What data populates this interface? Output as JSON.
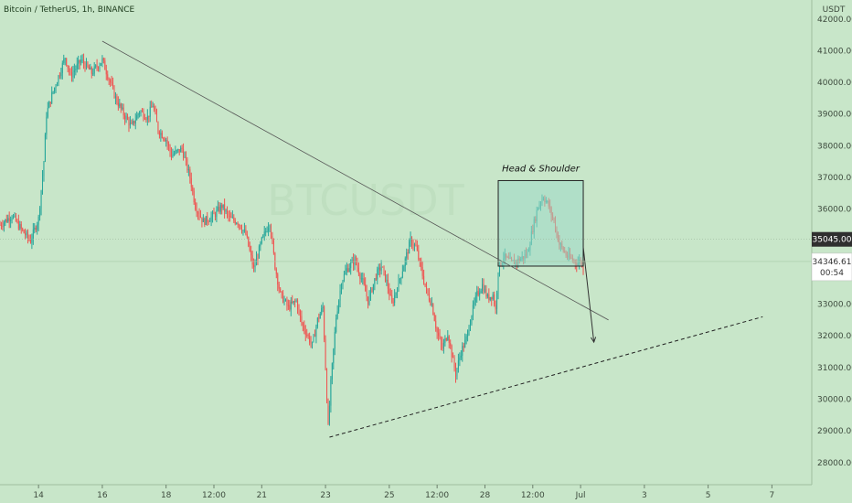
{
  "chart_data": {
    "type": "candlestick",
    "title": "Bitcoin / TetherUS, 1h, BINANCE",
    "currency": "USDT",
    "y_ticks": [
      28000,
      29000,
      30000,
      31000,
      32000,
      33000,
      34000,
      35000,
      36000,
      37000,
      38000,
      39000,
      40000,
      41000,
      42000
    ],
    "y_tick_labels": [
      "28000.00",
      "29000.00",
      "30000.00",
      "31000.00",
      "32000.00",
      "33000.00",
      "34000.00",
      "35000.00",
      "36000.00",
      "37000.00",
      "38000.00",
      "39000.00",
      "40000.00",
      "41000.00",
      "42000.00"
    ],
    "ylim": [
      27300,
      42600
    ],
    "x_ticks": [
      {
        "label": "14",
        "t": 0
      },
      {
        "label": "16",
        "t": 48
      },
      {
        "label": "18",
        "t": 96
      },
      {
        "label": "12:00",
        "t": 132
      },
      {
        "label": "21",
        "t": 168
      },
      {
        "label": "23",
        "t": 216
      },
      {
        "label": "25",
        "t": 264
      },
      {
        "label": "12:00",
        "t": 300
      },
      {
        "label": "28",
        "t": 336
      },
      {
        "label": "12:00",
        "t": 372
      },
      {
        "label": "Jul",
        "t": 408
      },
      {
        "label": "3",
        "t": 456
      },
      {
        "label": "5",
        "t": 504
      },
      {
        "label": "7",
        "t": 552
      }
    ],
    "xlim": [
      -29,
      582
    ],
    "price_path": [
      [
        -29,
        35500
      ],
      [
        -20,
        35800
      ],
      [
        -12,
        35300
      ],
      [
        -6,
        35000
      ],
      [
        0,
        35700
      ],
      [
        4,
        37500
      ],
      [
        6,
        39000
      ],
      [
        10,
        39600
      ],
      [
        16,
        40300
      ],
      [
        20,
        40800
      ],
      [
        24,
        40200
      ],
      [
        32,
        40700
      ],
      [
        40,
        40300
      ],
      [
        48,
        40700
      ],
      [
        54,
        40000
      ],
      [
        58,
        39500
      ],
      [
        64,
        39000
      ],
      [
        70,
        38600
      ],
      [
        76,
        39100
      ],
      [
        82,
        38900
      ],
      [
        86,
        39300
      ],
      [
        90,
        38500
      ],
      [
        96,
        38200
      ],
      [
        100,
        37700
      ],
      [
        108,
        37900
      ],
      [
        114,
        37000
      ],
      [
        118,
        36100
      ],
      [
        124,
        35600
      ],
      [
        132,
        35800
      ],
      [
        138,
        36100
      ],
      [
        144,
        35700
      ],
      [
        150,
        35600
      ],
      [
        156,
        35200
      ],
      [
        162,
        34100
      ],
      [
        168,
        35000
      ],
      [
        174,
        35600
      ],
      [
        178,
        34200
      ],
      [
        182,
        33300
      ],
      [
        188,
        32900
      ],
      [
        194,
        33100
      ],
      [
        198,
        32400
      ],
      [
        206,
        31700
      ],
      [
        210,
        32500
      ],
      [
        214,
        32900
      ],
      [
        218,
        29100
      ],
      [
        220,
        30500
      ],
      [
        224,
        32600
      ],
      [
        228,
        33700
      ],
      [
        232,
        34100
      ],
      [
        238,
        34400
      ],
      [
        244,
        33700
      ],
      [
        248,
        33100
      ],
      [
        254,
        33900
      ],
      [
        258,
        34200
      ],
      [
        262,
        33700
      ],
      [
        266,
        33000
      ],
      [
        272,
        33800
      ],
      [
        276,
        34400
      ],
      [
        280,
        35000
      ],
      [
        284,
        34800
      ],
      [
        288,
        34100
      ],
      [
        292,
        33400
      ],
      [
        296,
        33000
      ],
      [
        300,
        32100
      ],
      [
        304,
        31600
      ],
      [
        308,
        32100
      ],
      [
        312,
        31200
      ],
      [
        314,
        30800
      ],
      [
        318,
        31500
      ],
      [
        322,
        31900
      ],
      [
        326,
        32700
      ],
      [
        330,
        33300
      ],
      [
        334,
        33600
      ],
      [
        338,
        33200
      ],
      [
        342,
        33300
      ],
      [
        344,
        32800
      ],
      [
        346,
        34100
      ],
      [
        350,
        34500
      ],
      [
        356,
        34300
      ],
      [
        362,
        34400
      ],
      [
        368,
        34600
      ],
      [
        372,
        35400
      ],
      [
        376,
        36100
      ],
      [
        380,
        36400
      ],
      [
        384,
        36100
      ],
      [
        388,
        35600
      ],
      [
        392,
        34900
      ],
      [
        398,
        34500
      ],
      [
        402,
        34400
      ],
      [
        406,
        34300
      ],
      [
        408,
        34400
      ],
      [
        410,
        34100
      ]
    ],
    "annotations": {
      "box_label": "Head & Shoulder",
      "box": {
        "t0": 346,
        "t1": 410,
        "p0": 34200,
        "p1": 36900
      },
      "downtrend_line": {
        "t0": 48,
        "p0": 41300,
        "t1": 429,
        "p1": 32500
      },
      "uptrend_line": {
        "t0": 219,
        "p0": 28800,
        "t1": 545,
        "p1": 32600
      },
      "arrow": {
        "t0": 410,
        "p0": 34800,
        "t1": 418,
        "p1": 31800
      }
    },
    "price_labels": [
      {
        "text": "35045.00",
        "value": 35045,
        "kind": "horizontal-line-label"
      },
      {
        "text": "34346.61",
        "value": 34346.61,
        "kind": "last-price"
      },
      {
        "text": "00:54",
        "kind": "countdown"
      }
    ],
    "grid": false,
    "colors": {
      "background": "#c8e6c9",
      "up": "#26a69a",
      "down": "#ef5350",
      "box_fill": "#9dd8c6",
      "line": "#555555"
    }
  }
}
